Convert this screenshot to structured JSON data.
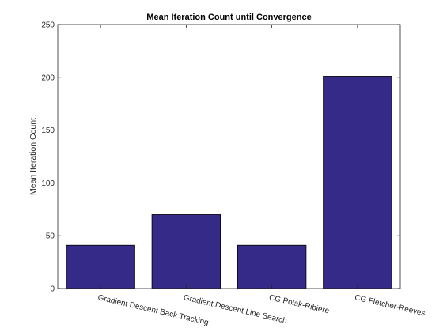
{
  "chart_data": {
    "type": "bar",
    "title": "Mean Iteration Count until Convergence",
    "xlabel": "",
    "ylabel": "Mean Iteration Count",
    "categories": [
      "Gradient Descent Back Tracking",
      "Gradient Descent Line Search",
      "CG Polak-Ribiere",
      "CG Fletcher-Reeves"
    ],
    "values": [
      41,
      70,
      41,
      201
    ],
    "ylim": [
      0,
      250
    ],
    "yticks": [
      0,
      50,
      100,
      150,
      200,
      250
    ],
    "grid": false,
    "bar_color": "#352a87",
    "legend": "none"
  }
}
